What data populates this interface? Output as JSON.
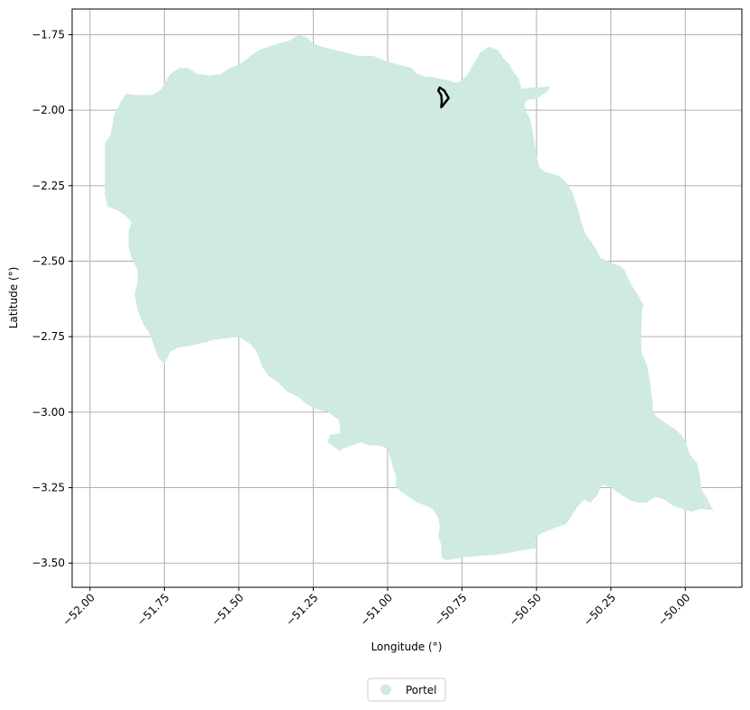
{
  "chart_data": {
    "type": "map",
    "xlabel": "Longitude (°)",
    "ylabel": "Latitude (°)",
    "xlim": [
      -52.06,
      -49.81
    ],
    "ylim": [
      -3.58,
      -1.665
    ],
    "grid": true,
    "legend_position": "bottom-center",
    "fill_color": "#cfeade",
    "outline_color": "#000000",
    "grid_color": "#b0b0b0",
    "x_ticks": [
      {
        "value": -52.0,
        "label": "−52.00"
      },
      {
        "value": -51.75,
        "label": "−51.75"
      },
      {
        "value": -51.5,
        "label": "−51.50"
      },
      {
        "value": -51.25,
        "label": "−51.25"
      },
      {
        "value": -51.0,
        "label": "−51.00"
      },
      {
        "value": -50.75,
        "label": "−50.75"
      },
      {
        "value": -50.5,
        "label": "−50.50"
      },
      {
        "value": -50.25,
        "label": "−50.25"
      },
      {
        "value": -50.0,
        "label": "−50.00"
      }
    ],
    "y_ticks": [
      {
        "value": -1.75,
        "label": "−1.75"
      },
      {
        "value": -2.0,
        "label": "−2.00"
      },
      {
        "value": -2.25,
        "label": "−2.25"
      },
      {
        "value": -2.5,
        "label": "−2.50"
      },
      {
        "value": -2.75,
        "label": "−2.75"
      },
      {
        "value": -3.0,
        "label": "−3.00"
      },
      {
        "value": -3.25,
        "label": "−3.25"
      },
      {
        "value": -3.5,
        "label": "−3.50"
      }
    ],
    "legend": [
      {
        "label": "Portel",
        "color": "#cfeade"
      }
    ],
    "polygon": [
      [
        -51.95,
        -2.11
      ],
      [
        -51.93,
        -2.08
      ],
      [
        -51.92,
        -2.02
      ],
      [
        -51.9,
        -1.98
      ],
      [
        -51.88,
        -1.945
      ],
      [
        -51.85,
        -1.95
      ],
      [
        -51.82,
        -1.95
      ],
      [
        -51.79,
        -1.95
      ],
      [
        -51.76,
        -1.93
      ],
      [
        -51.75,
        -1.91
      ],
      [
        -51.73,
        -1.88
      ],
      [
        -51.7,
        -1.86
      ],
      [
        -51.67,
        -1.86
      ],
      [
        -51.64,
        -1.88
      ],
      [
        -51.6,
        -1.885
      ],
      [
        -51.56,
        -1.88
      ],
      [
        -51.53,
        -1.86
      ],
      [
        -51.5,
        -1.85
      ],
      [
        -51.46,
        -1.82
      ],
      [
        -51.43,
        -1.8
      ],
      [
        -51.4,
        -1.79
      ],
      [
        -51.37,
        -1.78
      ],
      [
        -51.33,
        -1.77
      ],
      [
        -51.3,
        -1.75
      ],
      [
        -51.27,
        -1.76
      ],
      [
        -51.25,
        -1.78
      ],
      [
        -51.22,
        -1.79
      ],
      [
        -51.18,
        -1.8
      ],
      [
        -51.14,
        -1.81
      ],
      [
        -51.1,
        -1.82
      ],
      [
        -51.07,
        -1.82
      ],
      [
        -51.05,
        -1.82
      ],
      [
        -51.0,
        -1.84
      ],
      [
        -50.96,
        -1.85
      ],
      [
        -50.92,
        -1.86
      ],
      [
        -50.9,
        -1.88
      ],
      [
        -50.87,
        -1.89
      ],
      [
        -50.85,
        -1.89
      ],
      [
        -50.83,
        -1.895
      ],
      [
        -50.8,
        -1.9
      ],
      [
        -50.77,
        -1.91
      ],
      [
        -50.75,
        -1.9
      ],
      [
        -50.73,
        -1.88
      ],
      [
        -50.71,
        -1.845
      ],
      [
        -50.69,
        -1.81
      ],
      [
        -50.66,
        -1.79
      ],
      [
        -50.63,
        -1.8
      ],
      [
        -50.61,
        -1.83
      ],
      [
        -50.59,
        -1.85
      ],
      [
        -50.58,
        -1.87
      ],
      [
        -50.56,
        -1.895
      ],
      [
        -50.55,
        -1.93
      ],
      [
        -50.52,
        -1.925
      ],
      [
        -50.49,
        -1.924
      ],
      [
        -50.455,
        -1.922
      ],
      [
        -50.46,
        -1.935
      ],
      [
        -50.49,
        -1.955
      ],
      [
        -50.51,
        -1.965
      ],
      [
        -50.53,
        -1.965
      ],
      [
        -50.54,
        -1.98
      ],
      [
        -50.535,
        -2.005
      ],
      [
        -50.52,
        -2.03
      ],
      [
        -50.515,
        -2.06
      ],
      [
        -50.51,
        -2.09
      ],
      [
        -50.505,
        -2.12
      ],
      [
        -50.5,
        -2.15
      ],
      [
        -50.495,
        -2.17
      ],
      [
        -50.49,
        -2.19
      ],
      [
        -50.47,
        -2.205
      ],
      [
        -50.45,
        -2.21
      ],
      [
        -50.42,
        -2.22
      ],
      [
        -50.4,
        -2.24
      ],
      [
        -50.38,
        -2.27
      ],
      [
        -50.37,
        -2.3
      ],
      [
        -50.36,
        -2.33
      ],
      [
        -50.35,
        -2.37
      ],
      [
        -50.335,
        -2.41
      ],
      [
        -50.32,
        -2.43
      ],
      [
        -50.3,
        -2.46
      ],
      [
        -50.285,
        -2.49
      ],
      [
        -50.26,
        -2.5
      ],
      [
        -50.24,
        -2.51
      ],
      [
        -50.22,
        -2.515
      ],
      [
        -50.205,
        -2.53
      ],
      [
        -50.19,
        -2.56
      ],
      [
        -50.175,
        -2.59
      ],
      [
        -50.16,
        -2.61
      ],
      [
        -50.15,
        -2.63
      ],
      [
        -50.14,
        -2.645
      ],
      [
        -50.145,
        -2.655
      ],
      [
        -50.148,
        -2.72
      ],
      [
        -50.148,
        -2.79
      ],
      [
        -50.145,
        -2.81
      ],
      [
        -50.13,
        -2.84
      ],
      [
        -50.12,
        -2.89
      ],
      [
        -50.115,
        -2.93
      ],
      [
        -50.11,
        -2.97
      ],
      [
        -50.11,
        -3.0
      ],
      [
        -50.09,
        -3.02
      ],
      [
        -50.06,
        -3.04
      ],
      [
        -50.03,
        -3.06
      ],
      [
        -50.01,
        -3.08
      ],
      [
        -49.995,
        -3.11
      ],
      [
        -49.985,
        -3.14
      ],
      [
        -49.96,
        -3.17
      ],
      [
        -49.955,
        -3.19
      ],
      [
        -49.95,
        -3.22
      ],
      [
        -49.945,
        -3.26
      ],
      [
        -49.93,
        -3.28
      ],
      [
        -49.91,
        -3.32
      ],
      [
        -49.9,
        -3.325
      ],
      [
        -49.95,
        -3.32
      ],
      [
        -49.98,
        -3.33
      ],
      [
        -50.01,
        -3.32
      ],
      [
        -50.04,
        -3.31
      ],
      [
        -50.07,
        -3.29
      ],
      [
        -50.1,
        -3.28
      ],
      [
        -50.13,
        -3.3
      ],
      [
        -50.16,
        -3.3
      ],
      [
        -50.19,
        -3.29
      ],
      [
        -50.22,
        -3.27
      ],
      [
        -50.25,
        -3.25
      ],
      [
        -50.28,
        -3.24
      ],
      [
        -50.3,
        -3.28
      ],
      [
        -50.32,
        -3.3
      ],
      [
        -50.34,
        -3.29
      ],
      [
        -50.36,
        -3.31
      ],
      [
        -50.38,
        -3.34
      ],
      [
        -50.4,
        -3.37
      ],
      [
        -50.43,
        -3.38
      ],
      [
        -50.455,
        -3.39
      ],
      [
        -50.48,
        -3.4
      ],
      [
        -50.5,
        -3.41
      ],
      [
        -50.505,
        -3.43
      ],
      [
        -50.5,
        -3.45
      ],
      [
        -50.56,
        -3.46
      ],
      [
        -50.62,
        -3.47
      ],
      [
        -50.68,
        -3.475
      ],
      [
        -50.74,
        -3.48
      ],
      [
        -50.8,
        -3.49
      ],
      [
        -50.815,
        -3.485
      ],
      [
        -50.82,
        -3.47
      ],
      [
        -50.82,
        -3.44
      ],
      [
        -50.83,
        -3.41
      ],
      [
        -50.825,
        -3.38
      ],
      [
        -50.83,
        -3.35
      ],
      [
        -50.85,
        -3.32
      ],
      [
        -50.87,
        -3.31
      ],
      [
        -50.9,
        -3.3
      ],
      [
        -50.93,
        -3.28
      ],
      [
        -50.96,
        -3.26
      ],
      [
        -50.975,
        -3.24
      ],
      [
        -50.97,
        -3.22
      ],
      [
        -50.98,
        -3.19
      ],
      [
        -51.0,
        -3.12
      ],
      [
        -51.03,
        -3.11
      ],
      [
        -51.06,
        -3.11
      ],
      [
        -51.09,
        -3.1
      ],
      [
        -51.12,
        -3.11
      ],
      [
        -51.15,
        -3.12
      ],
      [
        -51.16,
        -3.13
      ],
      [
        -51.18,
        -3.115
      ],
      [
        -51.2,
        -3.1
      ],
      [
        -51.195,
        -3.075
      ],
      [
        -51.16,
        -3.07
      ],
      [
        -51.16,
        -3.05
      ],
      [
        -51.165,
        -3.025
      ],
      [
        -51.2,
        -3.0
      ],
      [
        -51.24,
        -2.99
      ],
      [
        -51.27,
        -2.975
      ],
      [
        -51.3,
        -2.95
      ],
      [
        -51.34,
        -2.93
      ],
      [
        -51.37,
        -2.9
      ],
      [
        -51.4,
        -2.88
      ],
      [
        -51.42,
        -2.85
      ],
      [
        -51.44,
        -2.8
      ],
      [
        -51.46,
        -2.775
      ],
      [
        -51.5,
        -2.75
      ],
      [
        -51.54,
        -2.755
      ],
      [
        -51.58,
        -2.76
      ],
      [
        -51.62,
        -2.77
      ],
      [
        -51.66,
        -2.78
      ],
      [
        -51.7,
        -2.785
      ],
      [
        -51.73,
        -2.8
      ],
      [
        -51.75,
        -2.84
      ],
      [
        -51.77,
        -2.82
      ],
      [
        -51.785,
        -2.78
      ],
      [
        -51.8,
        -2.74
      ],
      [
        -51.82,
        -2.71
      ],
      [
        -51.84,
        -2.66
      ],
      [
        -51.85,
        -2.61
      ],
      [
        -51.84,
        -2.57
      ],
      [
        -51.84,
        -2.53
      ],
      [
        -51.86,
        -2.49
      ],
      [
        -51.87,
        -2.45
      ],
      [
        -51.87,
        -2.4
      ],
      [
        -51.86,
        -2.37
      ],
      [
        -51.88,
        -2.35
      ],
      [
        -51.91,
        -2.33
      ],
      [
        -51.94,
        -2.32
      ],
      [
        -51.95,
        -2.28
      ],
      [
        -51.95,
        -2.2
      ]
    ],
    "highlight_outline": [
      [
        -50.825,
        -1.925
      ],
      [
        -50.81,
        -1.935
      ],
      [
        -50.795,
        -1.96
      ],
      [
        -50.815,
        -1.985
      ],
      [
        -50.82,
        -1.99
      ],
      [
        -50.818,
        -1.97
      ],
      [
        -50.82,
        -1.95
      ],
      [
        -50.83,
        -1.935
      ]
    ]
  }
}
